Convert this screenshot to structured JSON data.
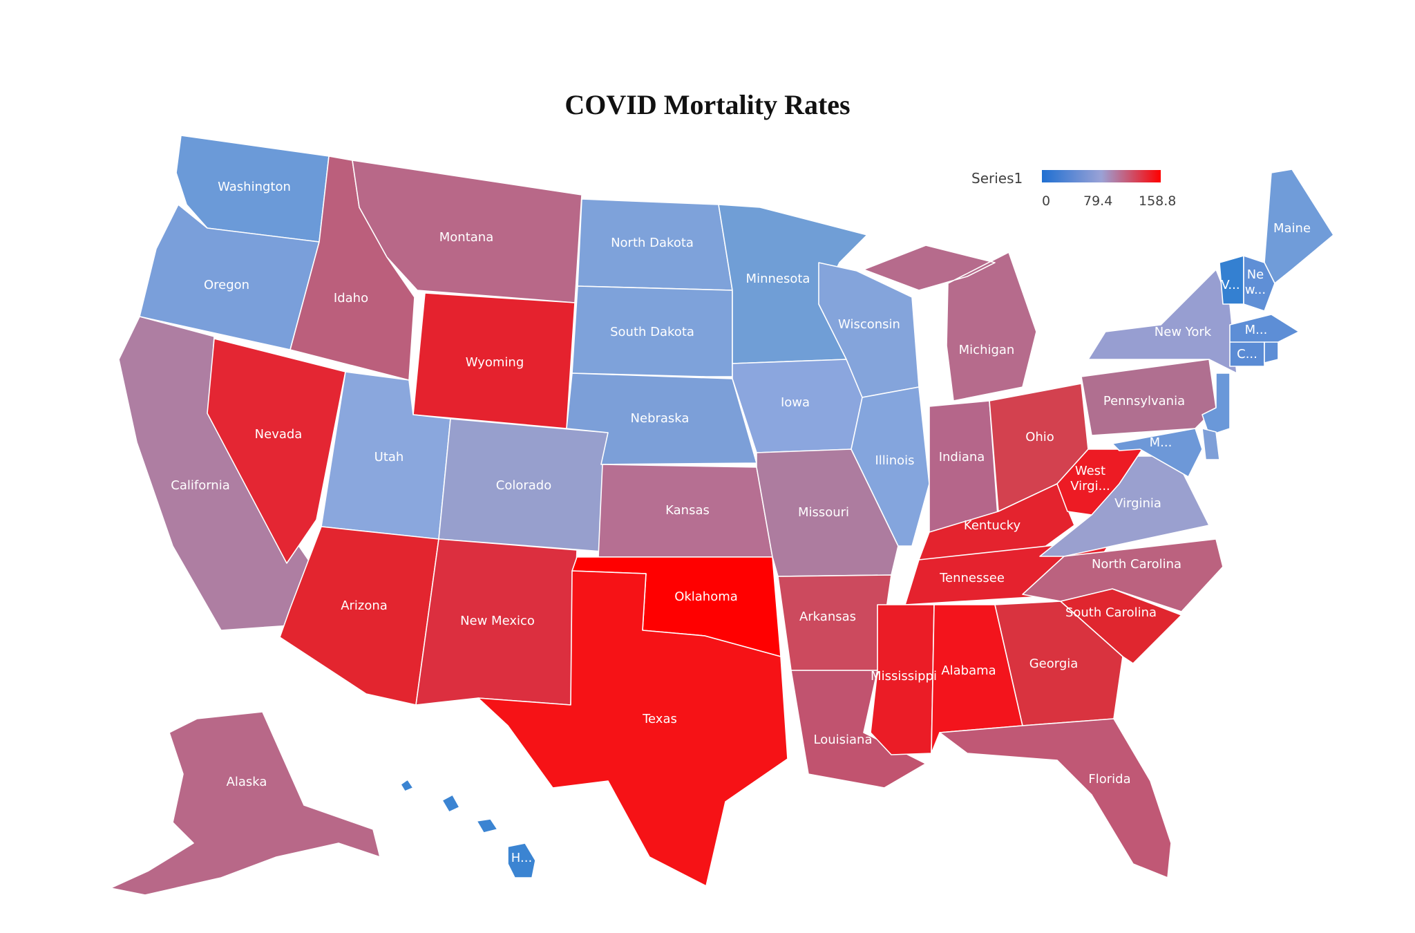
{
  "title": "COVID Mortality Rates",
  "legend": {
    "series_name": "Series1",
    "min_label": "0",
    "mid_label": "79.4",
    "max_label": "158.8",
    "min_value": 0,
    "max_value": 158.8,
    "color_low": "#1f6fd1",
    "color_mid": "#9aa2d6",
    "color_high": "#ff0000"
  },
  "map": {
    "type": "choropleth",
    "states": [
      {
        "id": "WA",
        "label": "Washington",
        "color": "#6b9ad8"
      },
      {
        "id": "OR",
        "label": "Oregon",
        "color": "#7a9fda"
      },
      {
        "id": "CA",
        "label": "California",
        "color": "#ae7ea2"
      },
      {
        "id": "ID",
        "label": "Idaho",
        "color": "#bb5f7c"
      },
      {
        "id": "NV",
        "label": "Nevada",
        "color": "#e42633"
      },
      {
        "id": "MT",
        "label": "Montana",
        "color": "#b86888"
      },
      {
        "id": "WY",
        "label": "Wyoming",
        "color": "#e5222e"
      },
      {
        "id": "UT",
        "label": "Utah",
        "color": "#8aa7dd"
      },
      {
        "id": "CO",
        "label": "Colorado",
        "color": "#979fcd"
      },
      {
        "id": "AZ",
        "label": "Arizona",
        "color": "#e3252f"
      },
      {
        "id": "NM",
        "label": "New Mexico",
        "color": "#dc2f3f"
      },
      {
        "id": "ND",
        "label": "North Dakota",
        "color": "#7ea2da"
      },
      {
        "id": "SD",
        "label": "South Dakota",
        "color": "#7ea2da"
      },
      {
        "id": "NE",
        "label": "Nebraska",
        "color": "#7c9fd8"
      },
      {
        "id": "KS",
        "label": "Kansas",
        "color": "#b66f92"
      },
      {
        "id": "OK",
        "label": "Oklahoma",
        "color": "#ff0000"
      },
      {
        "id": "TX",
        "label": "Texas",
        "color": "#f61216"
      },
      {
        "id": "MN",
        "label": "Minnesota",
        "color": "#709ed6"
      },
      {
        "id": "IA",
        "label": "Iowa",
        "color": "#8ba6de"
      },
      {
        "id": "MO",
        "label": "Missouri",
        "color": "#ad7c9f"
      },
      {
        "id": "AR",
        "label": "Arkansas",
        "color": "#cc4a5e"
      },
      {
        "id": "LA",
        "label": "Louisiana",
        "color": "#c1536f"
      },
      {
        "id": "WI",
        "label": "Wisconsin",
        "color": "#84a4db"
      },
      {
        "id": "IL",
        "label": "Illinois",
        "color": "#84a5dd"
      },
      {
        "id": "MI",
        "label": "Michigan",
        "color": "#b66b8c"
      },
      {
        "id": "IN",
        "label": "Indiana",
        "color": "#b5668a"
      },
      {
        "id": "OH",
        "label": "Ohio",
        "color": "#d3414f"
      },
      {
        "id": "KY",
        "label": "Kentucky",
        "color": "#e4232e"
      },
      {
        "id": "TN",
        "label": "Tennessee",
        "color": "#e5222e"
      },
      {
        "id": "MS",
        "label": "Mississippi",
        "color": "#eb1c26"
      },
      {
        "id": "AL",
        "label": "Alabama",
        "color": "#f3141c"
      },
      {
        "id": "GA",
        "label": "Georgia",
        "color": "#d9333f"
      },
      {
        "id": "FL",
        "label": "Florida",
        "color": "#c05875"
      },
      {
        "id": "SC",
        "label": "South Carolina",
        "color": "#e0262f"
      },
      {
        "id": "NC",
        "label": "North Carolina",
        "color": "#bb627f"
      },
      {
        "id": "VA",
        "label": "Virginia",
        "color": "#9aa0cf"
      },
      {
        "id": "WV",
        "label": "West Virgi...",
        "color": "#ed1b24"
      },
      {
        "id": "PA",
        "label": "Pennsylvania",
        "color": "#b06f90"
      },
      {
        "id": "NY",
        "label": "New York",
        "color": "#979ed1"
      },
      {
        "id": "ME",
        "label": "Maine",
        "color": "#709cd9"
      },
      {
        "id": "VT",
        "label": "V...",
        "color": "#3480d1"
      },
      {
        "id": "NH",
        "label": "Ne w...",
        "color": "#5f8fd6"
      },
      {
        "id": "MA",
        "label": "M...",
        "color": "#5d8ed6"
      },
      {
        "id": "CT",
        "label": "C...",
        "color": "#5a8bd4"
      },
      {
        "id": "RI",
        "label": "",
        "color": "#5d8ed6"
      },
      {
        "id": "NJ",
        "label": "",
        "color": "#6a98d9"
      },
      {
        "id": "MD",
        "label": "M...",
        "color": "#6d98d8"
      },
      {
        "id": "DE",
        "label": "",
        "color": "#7e9fd8"
      },
      {
        "id": "AK",
        "label": "Alaska",
        "color": "#b86888"
      },
      {
        "id": "HI",
        "label": "H...",
        "color": "#3b84d2"
      }
    ]
  }
}
